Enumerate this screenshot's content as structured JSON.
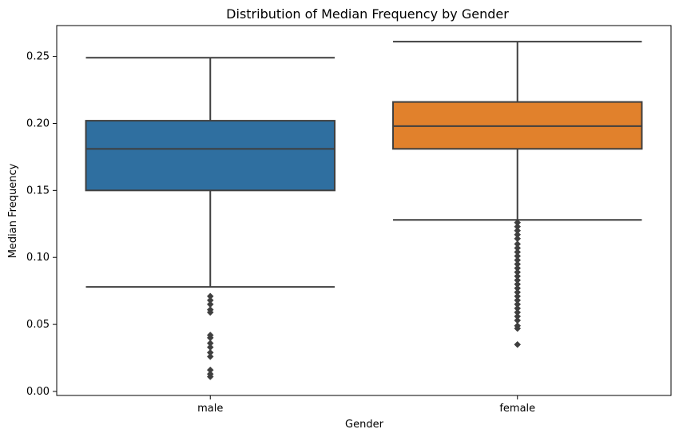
{
  "chart_data": {
    "type": "box",
    "title": "Distribution of Median Frequency by Gender",
    "xlabel": "Gender",
    "ylabel": "Median Frequency",
    "categories": [
      "male",
      "female"
    ],
    "ylim": [
      -0.003,
      0.273
    ],
    "yticks": [
      0.0,
      0.05,
      0.1,
      0.15,
      0.2,
      0.25
    ],
    "ytick_labels": [
      "0.00",
      "0.05",
      "0.10",
      "0.15",
      "0.20",
      "0.25"
    ],
    "grid": false,
    "legend": "none",
    "series": [
      {
        "category": "male",
        "color": "#2f6fa0",
        "whisker_low": 0.078,
        "q1": 0.15,
        "median": 0.181,
        "q3": 0.202,
        "whisker_high": 0.249,
        "outliers": [
          0.071,
          0.068,
          0.065,
          0.061,
          0.059,
          0.042,
          0.04,
          0.036,
          0.033,
          0.029,
          0.026,
          0.016,
          0.013,
          0.011
        ]
      },
      {
        "category": "female",
        "color": "#e1812c",
        "whisker_low": 0.128,
        "q1": 0.181,
        "median": 0.198,
        "q3": 0.216,
        "whisker_high": 0.261,
        "outliers": [
          0.126,
          0.123,
          0.12,
          0.117,
          0.114,
          0.11,
          0.107,
          0.104,
          0.101,
          0.098,
          0.095,
          0.092,
          0.089,
          0.086,
          0.083,
          0.08,
          0.077,
          0.074,
          0.071,
          0.068,
          0.065,
          0.062,
          0.059,
          0.056,
          0.053,
          0.049,
          0.047,
          0.035
        ]
      }
    ]
  }
}
